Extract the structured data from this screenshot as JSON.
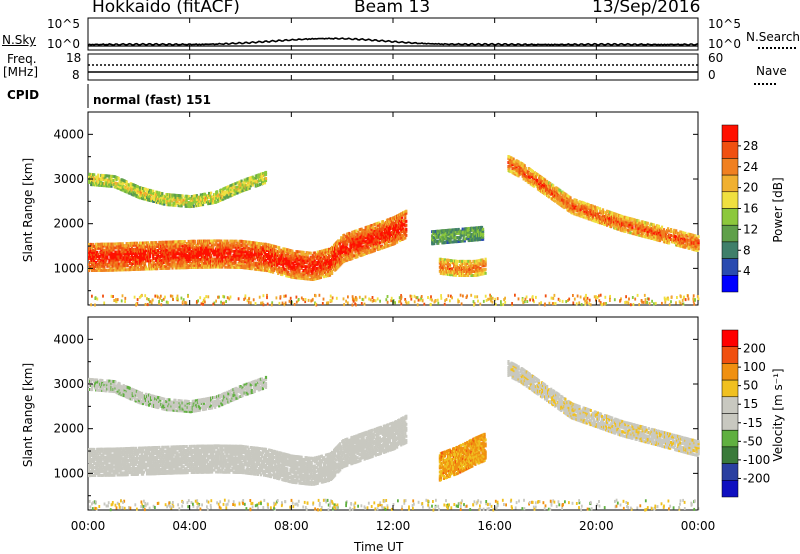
{
  "header": {
    "station": "Hokkaido (fitACF)",
    "beam": "Beam 13",
    "date": "13/Sep/2016"
  },
  "strips": {
    "nsky_label": "N.Sky",
    "nsky_ticks": [
      "10^5",
      "10^0"
    ],
    "nsky_right_ticks": [
      "10^5",
      "10^0"
    ],
    "nsearch_label": "N.Search",
    "freq_label_top": "Freq.",
    "freq_label_unit": "[MHz]",
    "freq_ticks": [
      "18",
      "8"
    ],
    "nave_ticks": [
      "60",
      "0"
    ],
    "nave_label": "Nave",
    "cpid_label": "CPID",
    "mode_text": "normal (fast) 151"
  },
  "colors": {
    "power_scale": [
      "#0000ff",
      "#2a4bb0",
      "#3f7f6a",
      "#5fa04a",
      "#8cc83c",
      "#f0e040",
      "#f0b030",
      "#f08020",
      "#f05010",
      "#ff1000"
    ],
    "velocity_scale": [
      "#1010c0",
      "#2a3fa0",
      "#3a7a3a",
      "#60b040",
      "#c8c8c0",
      "#c8c8c0",
      "#f0c020",
      "#f09010",
      "#f05010",
      "#ff0000"
    ]
  },
  "chart_data": [
    {
      "type": "heatmap",
      "name": "power",
      "ylabel": "Slant Range [km]",
      "yticks": [
        "1000",
        "2000",
        "3000",
        "4000"
      ],
      "ylim": [
        180,
        4500
      ],
      "xlim": [
        0,
        24
      ],
      "colorbar_label": "Power [dB]",
      "colorbar_ticks": [
        "28",
        "24",
        "20",
        "16",
        "12",
        "8",
        "4"
      ],
      "colorbar_range": [
        0,
        30
      ],
      "bands": [
        {
          "t": [
            0,
            1,
            2,
            3,
            4,
            5,
            6,
            7,
            8,
            8.8,
            9.5,
            10,
            11,
            12,
            12.5
          ],
          "r": [
            1250,
            1260,
            1280,
            1300,
            1320,
            1330,
            1320,
            1250,
            1100,
            1050,
            1150,
            1450,
            1650,
            1850,
            2000
          ],
          "w": 300,
          "level": 0.9
        },
        {
          "t": [
            0,
            1,
            2,
            3,
            4,
            5,
            6,
            7
          ],
          "r": [
            3000,
            2950,
            2700,
            2550,
            2500,
            2600,
            2850,
            3050
          ],
          "w": 120,
          "level": 0.55
        },
        {
          "t": [
            16.5,
            17,
            17.5,
            18,
            19,
            20,
            21,
            22,
            23,
            24
          ],
          "r": [
            3350,
            3200,
            3000,
            2800,
            2400,
            2200,
            2000,
            1850,
            1700,
            1550
          ],
          "w": 160,
          "level": 0.8
        },
        {
          "t": [
            13.8,
            14.5,
            15.2,
            15.6
          ],
          "r": [
            1050,
            1000,
            1000,
            1050
          ],
          "w": 160,
          "level": 0.75
        },
        {
          "t": [
            13.5,
            14.5,
            15.5
          ],
          "r": [
            1700,
            1750,
            1800
          ],
          "w": 150,
          "level": 0.35
        }
      ]
    },
    {
      "type": "heatmap",
      "name": "velocity",
      "ylabel": "Slant Range [km]",
      "yticks": [
        "1000",
        "2000",
        "3000",
        "4000"
      ],
      "ylim": [
        180,
        4500
      ],
      "xlim": [
        0,
        24
      ],
      "xlabel": "Time UT",
      "xticks": [
        "00:00",
        "04:00",
        "08:00",
        "12:00",
        "16:00",
        "20:00",
        "00:00"
      ],
      "xtick_hours": [
        0,
        4,
        8,
        12,
        16,
        20,
        24
      ],
      "colorbar_label": "Velocity [m s⁻¹]",
      "colorbar_ticks": [
        "200",
        "100",
        "50",
        "15",
        "-15",
        "-50",
        "-100",
        "-200"
      ],
      "colorbar_range": [
        -250,
        250
      ],
      "bands": [
        {
          "t": [
            0,
            1,
            2,
            3,
            4,
            5,
            6,
            7,
            8,
            8.8,
            9.5,
            10,
            11,
            12,
            12.5
          ],
          "r": [
            1250,
            1260,
            1280,
            1300,
            1320,
            1330,
            1320,
            1250,
            1100,
            1050,
            1150,
            1450,
            1650,
            1850,
            2000
          ],
          "w": 300,
          "level": 0.5
        },
        {
          "t": [
            0,
            1,
            2,
            3,
            4,
            5,
            6,
            7
          ],
          "r": [
            3000,
            2950,
            2700,
            2550,
            2500,
            2600,
            2850,
            3050
          ],
          "w": 120,
          "level": 0.45
        },
        {
          "t": [
            16.5,
            17,
            17.5,
            18,
            19,
            20,
            21,
            22,
            23,
            24
          ],
          "r": [
            3350,
            3200,
            3000,
            2800,
            2400,
            2200,
            2000,
            1850,
            1700,
            1550
          ],
          "w": 160,
          "level": 0.55
        },
        {
          "t": [
            13.8,
            14.5,
            15.2,
            15.6
          ],
          "r": [
            1150,
            1300,
            1500,
            1600
          ],
          "w": 300,
          "level": 0.72
        }
      ]
    }
  ]
}
